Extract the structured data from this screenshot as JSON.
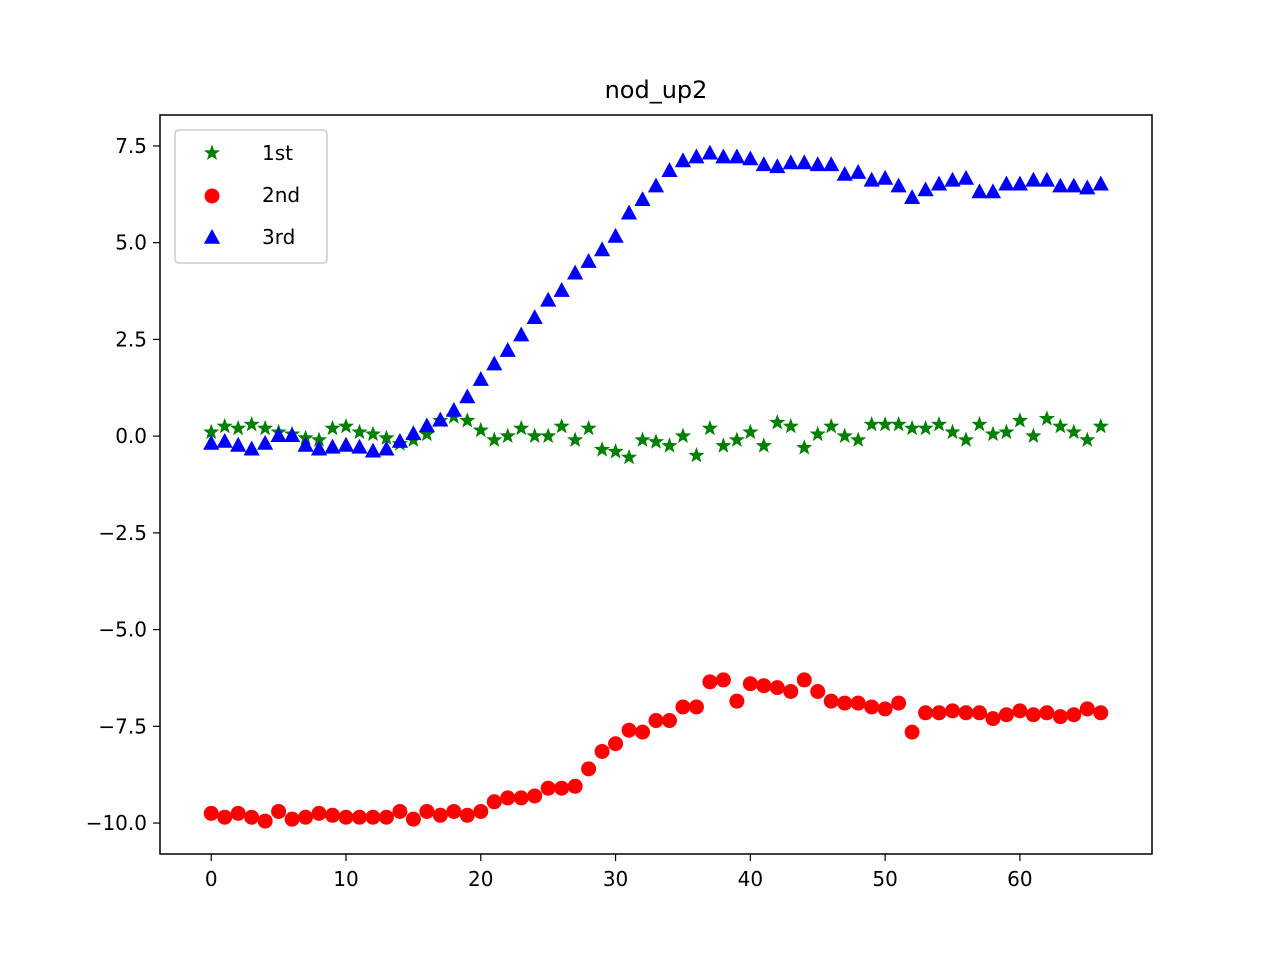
{
  "chart_data": {
    "type": "scatter",
    "title": "nod_up2",
    "xlabel": "",
    "ylabel": "",
    "xlim": [
      -3.8,
      69.8
    ],
    "ylim": [
      -10.8,
      8.3
    ],
    "xticks": [
      0,
      10,
      20,
      30,
      40,
      50,
      60
    ],
    "xtick_labels": [
      "0",
      "10",
      "20",
      "30",
      "40",
      "50",
      "60"
    ],
    "yticks": [
      -10.0,
      -7.5,
      -5.0,
      -2.5,
      0.0,
      2.5,
      5.0,
      7.5
    ],
    "ytick_labels": [
      "−10.0",
      "−7.5",
      "−5.0",
      "−2.5",
      "0.0",
      "2.5",
      "5.0",
      "7.5"
    ],
    "grid": false,
    "legend_position": "top-left",
    "series": [
      {
        "name": "1st",
        "marker": "star",
        "color": "#008000",
        "x": [
          0,
          1,
          2,
          3,
          4,
          5,
          6,
          7,
          8,
          9,
          10,
          11,
          12,
          13,
          14,
          15,
          16,
          17,
          18,
          19,
          20,
          21,
          22,
          23,
          24,
          25,
          26,
          27,
          28,
          29,
          30,
          31,
          32,
          33,
          34,
          35,
          36,
          37,
          38,
          39,
          40,
          41,
          42,
          43,
          44,
          45,
          46,
          47,
          48,
          49,
          50,
          51,
          52,
          53,
          54,
          55,
          56,
          57,
          58,
          59,
          60,
          61,
          62,
          63,
          64,
          65,
          66
        ],
        "y": [
          0.1,
          0.25,
          0.2,
          0.3,
          0.2,
          0.1,
          0.05,
          -0.05,
          -0.1,
          0.2,
          0.25,
          0.1,
          0.05,
          -0.05,
          -0.2,
          -0.1,
          0.05,
          0.4,
          0.5,
          0.4,
          0.15,
          -0.1,
          0.0,
          0.2,
          0.0,
          0.0,
          0.25,
          -0.1,
          0.2,
          -0.35,
          -0.4,
          -0.55,
          -0.1,
          -0.15,
          -0.25,
          0.0,
          -0.5,
          0.2,
          -0.25,
          -0.1,
          0.1,
          -0.25,
          0.35,
          0.25,
          -0.3,
          0.05,
          0.25,
          0.0,
          -0.1,
          0.3,
          0.3,
          0.3,
          0.2,
          0.2,
          0.3,
          0.1,
          -0.1,
          0.3,
          0.05,
          0.1,
          0.4,
          0.0,
          0.45,
          0.25,
          0.1,
          -0.1,
          0.25
        ]
      },
      {
        "name": "2nd",
        "marker": "circle",
        "color": "#ff0000",
        "x": [
          0,
          1,
          2,
          3,
          4,
          5,
          6,
          7,
          8,
          9,
          10,
          11,
          12,
          13,
          14,
          15,
          16,
          17,
          18,
          19,
          20,
          21,
          22,
          23,
          24,
          25,
          26,
          27,
          28,
          29,
          30,
          31,
          32,
          33,
          34,
          35,
          36,
          37,
          38,
          39,
          40,
          41,
          42,
          43,
          44,
          45,
          46,
          47,
          48,
          49,
          50,
          51,
          52,
          53,
          54,
          55,
          56,
          57,
          58,
          59,
          60,
          61,
          62,
          63,
          64,
          65,
          66
        ],
        "y": [
          -9.75,
          -9.85,
          -9.75,
          -9.85,
          -9.95,
          -9.7,
          -9.9,
          -9.85,
          -9.75,
          -9.8,
          -9.85,
          -9.85,
          -9.85,
          -9.85,
          -9.7,
          -9.9,
          -9.7,
          -9.8,
          -9.7,
          -9.8,
          -9.7,
          -9.45,
          -9.35,
          -9.35,
          -9.3,
          -9.1,
          -9.1,
          -9.05,
          -8.6,
          -8.15,
          -7.95,
          -7.6,
          -7.65,
          -7.35,
          -7.35,
          -7.0,
          -7.0,
          -6.35,
          -6.3,
          -6.85,
          -6.4,
          -6.45,
          -6.5,
          -6.6,
          -6.3,
          -6.6,
          -6.85,
          -6.9,
          -6.9,
          -7.0,
          -7.05,
          -6.9,
          -7.65,
          -7.15,
          -7.15,
          -7.1,
          -7.15,
          -7.15,
          -7.3,
          -7.2,
          -7.1,
          -7.2,
          -7.15,
          -7.25,
          -7.2,
          -7.05,
          -7.15
        ]
      },
      {
        "name": "3rd",
        "marker": "triangle",
        "color": "#0000ff",
        "x": [
          0,
          1,
          2,
          3,
          4,
          5,
          6,
          7,
          8,
          9,
          10,
          11,
          12,
          13,
          14,
          15,
          16,
          17,
          18,
          19,
          20,
          21,
          22,
          23,
          24,
          25,
          26,
          27,
          28,
          29,
          30,
          31,
          32,
          33,
          34,
          35,
          36,
          37,
          38,
          39,
          40,
          41,
          42,
          43,
          44,
          45,
          46,
          47,
          48,
          49,
          50,
          51,
          52,
          53,
          54,
          55,
          56,
          57,
          58,
          59,
          60,
          61,
          62,
          63,
          64,
          65,
          66
        ],
        "y": [
          -0.2,
          -0.15,
          -0.25,
          -0.35,
          -0.2,
          0.0,
          0.0,
          -0.25,
          -0.35,
          -0.3,
          -0.25,
          -0.3,
          -0.4,
          -0.35,
          -0.15,
          0.05,
          0.25,
          0.4,
          0.65,
          1.0,
          1.45,
          1.85,
          2.2,
          2.6,
          3.05,
          3.5,
          3.75,
          4.2,
          4.5,
          4.8,
          5.15,
          5.75,
          6.1,
          6.45,
          6.85,
          7.1,
          7.2,
          7.3,
          7.2,
          7.2,
          7.15,
          7.0,
          6.95,
          7.05,
          7.05,
          7.0,
          7.0,
          6.75,
          6.8,
          6.6,
          6.65,
          6.45,
          6.15,
          6.35,
          6.5,
          6.6,
          6.65,
          6.3,
          6.3,
          6.5,
          6.5,
          6.6,
          6.6,
          6.45,
          6.45,
          6.4,
          6.5
        ]
      }
    ]
  }
}
